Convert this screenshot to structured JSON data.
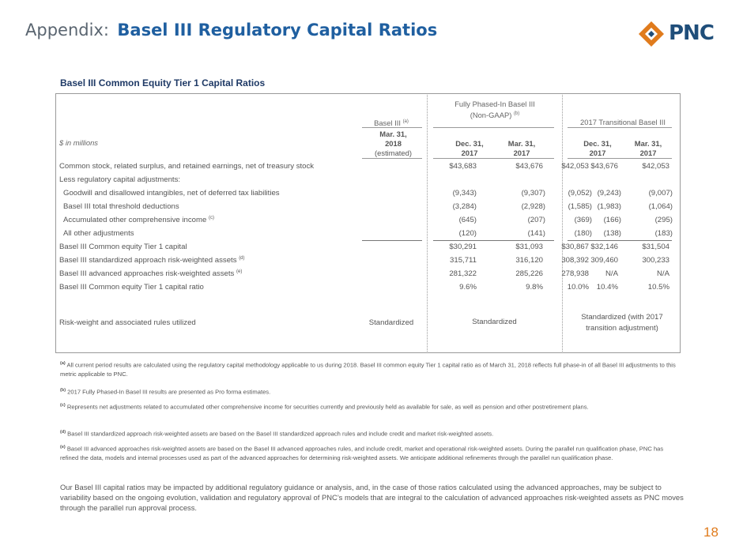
{
  "header": {
    "prefix": "Appendix:",
    "title": "Basel III Regulatory Capital Ratios",
    "logo_text": "PNC"
  },
  "section_title": "Basel III Common Equity Tier 1 Capital Ratios",
  "table": {
    "groups": {
      "basel3": "Basel III",
      "basel3_sup": "(a)",
      "fully_phased_1": "Fully Phased-In Basel III",
      "fully_phased_2": "(Non-GAAP)",
      "fully_phased_sup": "(b)",
      "transitional": "2017 Transitional Basel III"
    },
    "units_label": "$ in millions",
    "columns": [
      {
        "l1": "Mar. 31,",
        "l2": "2018",
        "l3": "(estimated)"
      },
      {
        "l1": "Dec. 31,",
        "l2": "2017"
      },
      {
        "l1": "Mar. 31,",
        "l2": "2017"
      },
      {
        "l1": "Dec. 31,",
        "l2": "2017"
      },
      {
        "l1": "Mar. 31,",
        "l2": "2017"
      }
    ],
    "rows": [
      {
        "label": "Common stock, related surplus, and retained earnings, net of treasury stock",
        "values": [
          "$43,683",
          "$43,676",
          "$42,053",
          "$43,676",
          "$42,053"
        ]
      },
      {
        "label": "Less regulatory capital adjustments:",
        "values": [
          "",
          "",
          "",
          "",
          ""
        ]
      },
      {
        "label": "Goodwill and disallowed intangibles, net of deferred tax liabilities",
        "values": [
          "(9,343)",
          "(9,307)",
          "(9,052)",
          "(9,243)",
          "(9,007)"
        ]
      },
      {
        "label": "Basel III total threshold deductions",
        "values": [
          "(3,284)",
          "(2,928)",
          "(1,585)",
          "(1,983)",
          "(1,064)"
        ]
      },
      {
        "label": "Accumulated other comprehensive income",
        "sup": "(c)",
        "values": [
          "(645)",
          "(207)",
          "(369)",
          "(166)",
          "(295)"
        ]
      },
      {
        "label": "All other adjustments",
        "values": [
          "(120)",
          "(141)",
          "(180)",
          "(138)",
          "(183)"
        ]
      },
      {
        "label": "Basel III Common equity Tier 1 capital",
        "values": [
          "$30,291",
          "$31,093",
          "$30,867",
          "$32,146",
          "$31,504"
        ]
      },
      {
        "label": "Basel III standardized approach risk-weighted assets",
        "sup": "(d)",
        "values": [
          "315,711",
          "316,120",
          "308,392",
          "309,460",
          "300,233"
        ]
      },
      {
        "label": "Basel III advanced approaches risk-weighted assets",
        "sup": "(e)",
        "values": [
          "281,322",
          "285,226",
          "278,938",
          "N/A",
          "N/A"
        ]
      },
      {
        "label": "Basel III Common equity Tier 1 capital ratio",
        "values": [
          "9.6%",
          "9.8%",
          "10.0%",
          "10.4%",
          "10.5%"
        ]
      }
    ],
    "rules_row": {
      "label": "Risk-weight and associated rules utilized",
      "basel3": "Standardized",
      "fully_phased": "Standardized",
      "transitional_1": "Standardized (with 2017",
      "transitional_2": "transition adjustment)"
    }
  },
  "footnotes": [
    {
      "mark": "(a)",
      "text": "All current period results are calculated using the regulatory capital methodology applicable to us during 2018. Basel III common equity Tier 1 capital ratio as of March 31, 2018 reflects full phase-in of all Basel III adjustments to this metric applicable to PNC."
    },
    {
      "mark": "(b)",
      "text": "2017 Fully Phased-In Basel III results are presented as Pro forma estimates."
    },
    {
      "mark": "(c)",
      "text": "Represents net adjustments related to accumulated other comprehensive income for securities currently and previously held as available for sale, as well as pension and other postretirement plans."
    },
    {
      "mark": "(d)",
      "text": "Basel III standardized approach risk-weighted assets are based on the Basel III standardized approach rules and include credit and market risk-weighted assets."
    },
    {
      "mark": "(e)",
      "text": "Basel III advanced approaches risk-weighted assets are based on the Basel III advanced approaches rules, and include credit, market and operational risk-weighted assets. During the parallel run qualification phase, PNC has refined the data, models and internal processes used as part of the advanced approaches for determining risk-weighted assets. We anticipate additional refinements through the parallel run qualification phase."
    }
  ],
  "closing_text": "Our Basel III capital ratios may be impacted by additional regulatory guidance or analysis, and, in the case of those ratios calculated using the advanced approaches, may be subject to variability based on the ongoing evolution, validation and regulatory approval of PNC’s models that are integral to the calculation of advanced approaches risk-weighted assets as PNC moves through the parallel run approval process.",
  "page_number": "18",
  "colors": {
    "title_blue": "#1f5fa0",
    "logo_orange": "#e07b1c",
    "logo_navy": "#1f4e7a",
    "page_number": "#e07b1c"
  }
}
